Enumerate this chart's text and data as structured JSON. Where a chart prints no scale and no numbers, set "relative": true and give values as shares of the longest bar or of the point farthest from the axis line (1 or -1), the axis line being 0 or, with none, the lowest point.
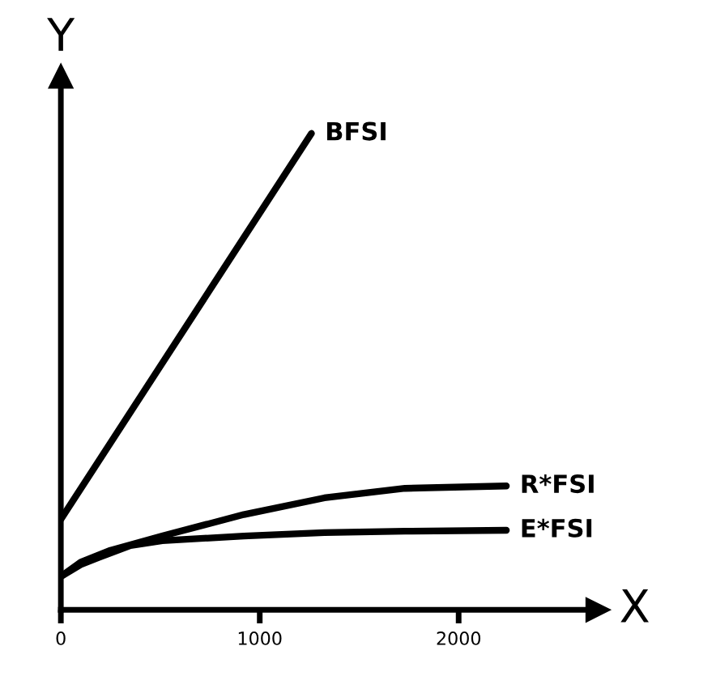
{
  "chart_data": {
    "type": "line",
    "xlabel": "X",
    "ylabel": "Y",
    "relative": true,
    "xlim": [
      0,
      2700
    ],
    "xticks": [
      0,
      1000,
      2000
    ],
    "grid": false,
    "legend": false,
    "marker": "none",
    "line_style": "solid",
    "series": [
      {
        "name": "BFSI",
        "color": "#000000",
        "x": [
          0,
          1260
        ],
        "values": [
          0.19,
          1
        ]
      },
      {
        "name": "R*FSI",
        "color": "#000000",
        "x": [
          0,
          100,
          250,
          510,
          920,
          1325,
          1730,
          2240
        ],
        "values": [
          0.07,
          0.1,
          0.125,
          0.155,
          0.2,
          0.235,
          0.255,
          0.26
        ]
      },
      {
        "name": "E*FSI",
        "color": "#000000",
        "x": [
          0,
          100,
          190,
          350,
          510,
          920,
          1325,
          1730,
          2240
        ],
        "values": [
          0.07,
          0.095,
          0.11,
          0.135,
          0.145,
          0.155,
          0.162,
          0.165,
          0.167
        ]
      }
    ]
  }
}
